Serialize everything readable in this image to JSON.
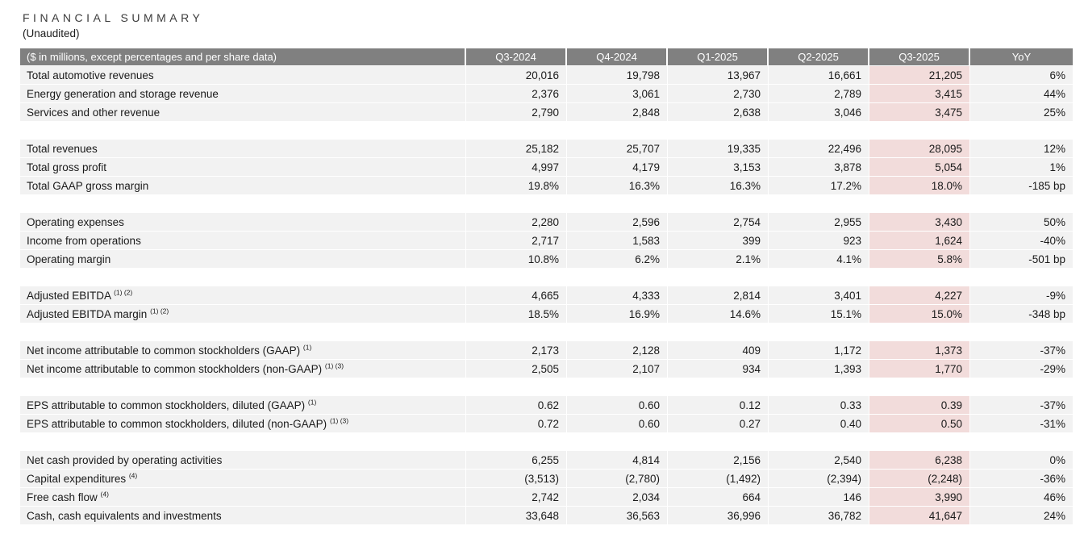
{
  "title": "FINANCIAL SUMMARY",
  "subtitle": "(Unaudited)",
  "colors": {
    "header_bg": "#808080",
    "header_text": "#ffffff",
    "row_bg": "#f2f2f2",
    "highlight_bg": "#f2dcdb",
    "separator": "#ffffff",
    "text": "#1a1a1a"
  },
  "table": {
    "header_label": "($ in millions, except percentages and per share data)",
    "columns": [
      "Q3-2024",
      "Q4-2024",
      "Q1-2025",
      "Q2-2025",
      "Q3-2025",
      "YoY"
    ],
    "highlighted_column": "Q3-2025",
    "sections": [
      {
        "rows": [
          {
            "label": "Total automotive revenues",
            "sup": "",
            "values": [
              "20,016",
              "19,798",
              "13,967",
              "16,661",
              "21,205",
              "6%"
            ]
          },
          {
            "label": "Energy generation and storage revenue",
            "sup": "",
            "values": [
              "2,376",
              "3,061",
              "2,730",
              "2,789",
              "3,415",
              "44%"
            ]
          },
          {
            "label": "Services and other revenue",
            "sup": "",
            "values": [
              "2,790",
              "2,848",
              "2,638",
              "3,046",
              "3,475",
              "25%"
            ]
          }
        ]
      },
      {
        "rows": [
          {
            "label": "Total revenues",
            "sup": "",
            "values": [
              "25,182",
              "25,707",
              "19,335",
              "22,496",
              "28,095",
              "12%"
            ]
          },
          {
            "label": "Total gross profit",
            "sup": "",
            "values": [
              "4,997",
              "4,179",
              "3,153",
              "3,878",
              "5,054",
              "1%"
            ]
          },
          {
            "label": "Total GAAP gross margin",
            "sup": "",
            "values": [
              "19.8%",
              "16.3%",
              "16.3%",
              "17.2%",
              "18.0%",
              "-185 bp"
            ]
          }
        ]
      },
      {
        "rows": [
          {
            "label": "Operating expenses",
            "sup": "",
            "values": [
              "2,280",
              "2,596",
              "2,754",
              "2,955",
              "3,430",
              "50%"
            ]
          },
          {
            "label": "Income from operations",
            "sup": "",
            "values": [
              "2,717",
              "1,583",
              "399",
              "923",
              "1,624",
              "-40%"
            ]
          },
          {
            "label": "Operating margin",
            "sup": "",
            "values": [
              "10.8%",
              "6.2%",
              "2.1%",
              "4.1%",
              "5.8%",
              "-501 bp"
            ]
          }
        ]
      },
      {
        "rows": [
          {
            "label": "Adjusted EBITDA",
            "sup": "(1) (2)",
            "values": [
              "4,665",
              "4,333",
              "2,814",
              "3,401",
              "4,227",
              "-9%"
            ]
          },
          {
            "label": "Adjusted EBITDA margin",
            "sup": "(1) (2)",
            "values": [
              "18.5%",
              "16.9%",
              "14.6%",
              "15.1%",
              "15.0%",
              "-348 bp"
            ]
          }
        ]
      },
      {
        "rows": [
          {
            "label": "Net income attributable to common stockholders (GAAP)",
            "sup": "(1)",
            "values": [
              "2,173",
              "2,128",
              "409",
              "1,172",
              "1,373",
              "-37%"
            ]
          },
          {
            "label": "Net income attributable to common stockholders (non-GAAP)",
            "sup": "(1) (3)",
            "values": [
              "2,505",
              "2,107",
              "934",
              "1,393",
              "1,770",
              "-29%"
            ]
          }
        ]
      },
      {
        "rows": [
          {
            "label": "EPS attributable to common stockholders, diluted (GAAP)",
            "sup": "(1)",
            "values": [
              "0.62",
              "0.60",
              "0.12",
              "0.33",
              "0.39",
              "-37%"
            ]
          },
          {
            "label": "EPS attributable to common stockholders, diluted (non-GAAP)",
            "sup": "(1) (3)",
            "values": [
              "0.72",
              "0.60",
              "0.27",
              "0.40",
              "0.50",
              "-31%"
            ]
          }
        ]
      },
      {
        "rows": [
          {
            "label": "Net cash provided by operating activities",
            "sup": "",
            "values": [
              "6,255",
              "4,814",
              "2,156",
              "2,540",
              "6,238",
              "0%"
            ]
          },
          {
            "label": "Capital expenditures",
            "sup": "(4)",
            "values": [
              "(3,513)",
              "(2,780)",
              "(1,492)",
              "(2,394)",
              "(2,248)",
              "-36%"
            ]
          },
          {
            "label": "Free cash flow",
            "sup": "(4)",
            "values": [
              "2,742",
              "2,034",
              "664",
              "146",
              "3,990",
              "46%"
            ]
          },
          {
            "label": "Cash, cash equivalents and investments",
            "sup": "",
            "values": [
              "33,648",
              "36,563",
              "36,996",
              "36,782",
              "41,647",
              "24%"
            ]
          }
        ]
      }
    ]
  }
}
